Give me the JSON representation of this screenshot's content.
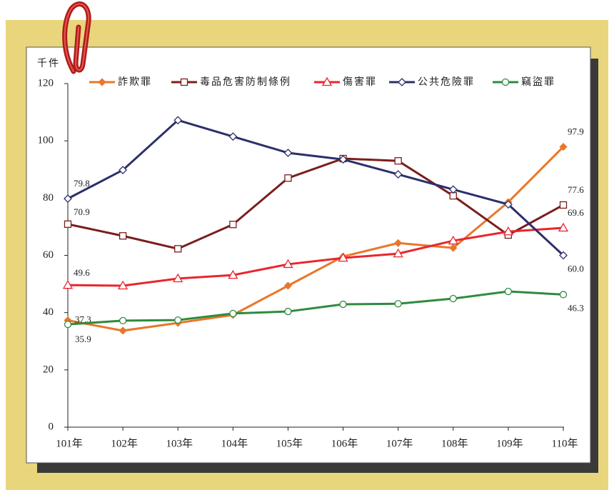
{
  "chart_data": {
    "type": "line",
    "y_label": "千件",
    "categories": [
      "101年",
      "102年",
      "103年",
      "104年",
      "105年",
      "106年",
      "107年",
      "108年",
      "109年",
      "110年"
    ],
    "series": [
      {
        "name": "詐欺罪",
        "color": "#e8772a",
        "marker": "diamond-filled",
        "values": [
          37.3,
          33.7,
          36.4,
          39.2,
          49.4,
          59.6,
          64.3,
          62.6,
          78.6,
          97.9
        ],
        "value_labels": [
          "37.3",
          null,
          null,
          null,
          null,
          null,
          null,
          null,
          null,
          "97.9"
        ]
      },
      {
        "name": "毒品危害防制條例",
        "color": "#7b1d1d",
        "marker": "square",
        "values": [
          70.9,
          66.8,
          62.3,
          70.8,
          87.0,
          93.8,
          93.0,
          80.8,
          67.1,
          77.6
        ],
        "value_labels": [
          "70.9",
          null,
          null,
          null,
          null,
          null,
          null,
          null,
          null,
          "77.6"
        ]
      },
      {
        "name": "傷害罪",
        "color": "#e8262d",
        "marker": "triangle",
        "values": [
          49.6,
          49.4,
          51.9,
          53.1,
          56.9,
          59.1,
          60.6,
          65.1,
          68.3,
          69.6
        ],
        "value_labels": [
          "49.6",
          null,
          null,
          null,
          null,
          null,
          null,
          null,
          null,
          "69.6"
        ]
      },
      {
        "name": "公共危險罪",
        "color": "#2b2f6b",
        "marker": "diamond",
        "values": [
          79.8,
          89.8,
          107.2,
          101.5,
          95.8,
          93.5,
          88.3,
          83.0,
          77.8,
          60.0
        ],
        "value_labels": [
          "79.8",
          null,
          null,
          null,
          null,
          null,
          null,
          null,
          null,
          "60.0"
        ]
      },
      {
        "name": "竊盜罪",
        "color": "#2e8b3e",
        "marker": "circle",
        "values": [
          35.9,
          37.2,
          37.4,
          39.7,
          40.4,
          42.9,
          43.1,
          44.9,
          47.4,
          46.3
        ],
        "value_labels": [
          "35.9",
          null,
          null,
          null,
          null,
          null,
          null,
          null,
          null,
          "46.3"
        ]
      }
    ],
    "ylim": [
      0,
      120
    ],
    "yticks": [
      0,
      20,
      40,
      60,
      80,
      100,
      120
    ]
  }
}
